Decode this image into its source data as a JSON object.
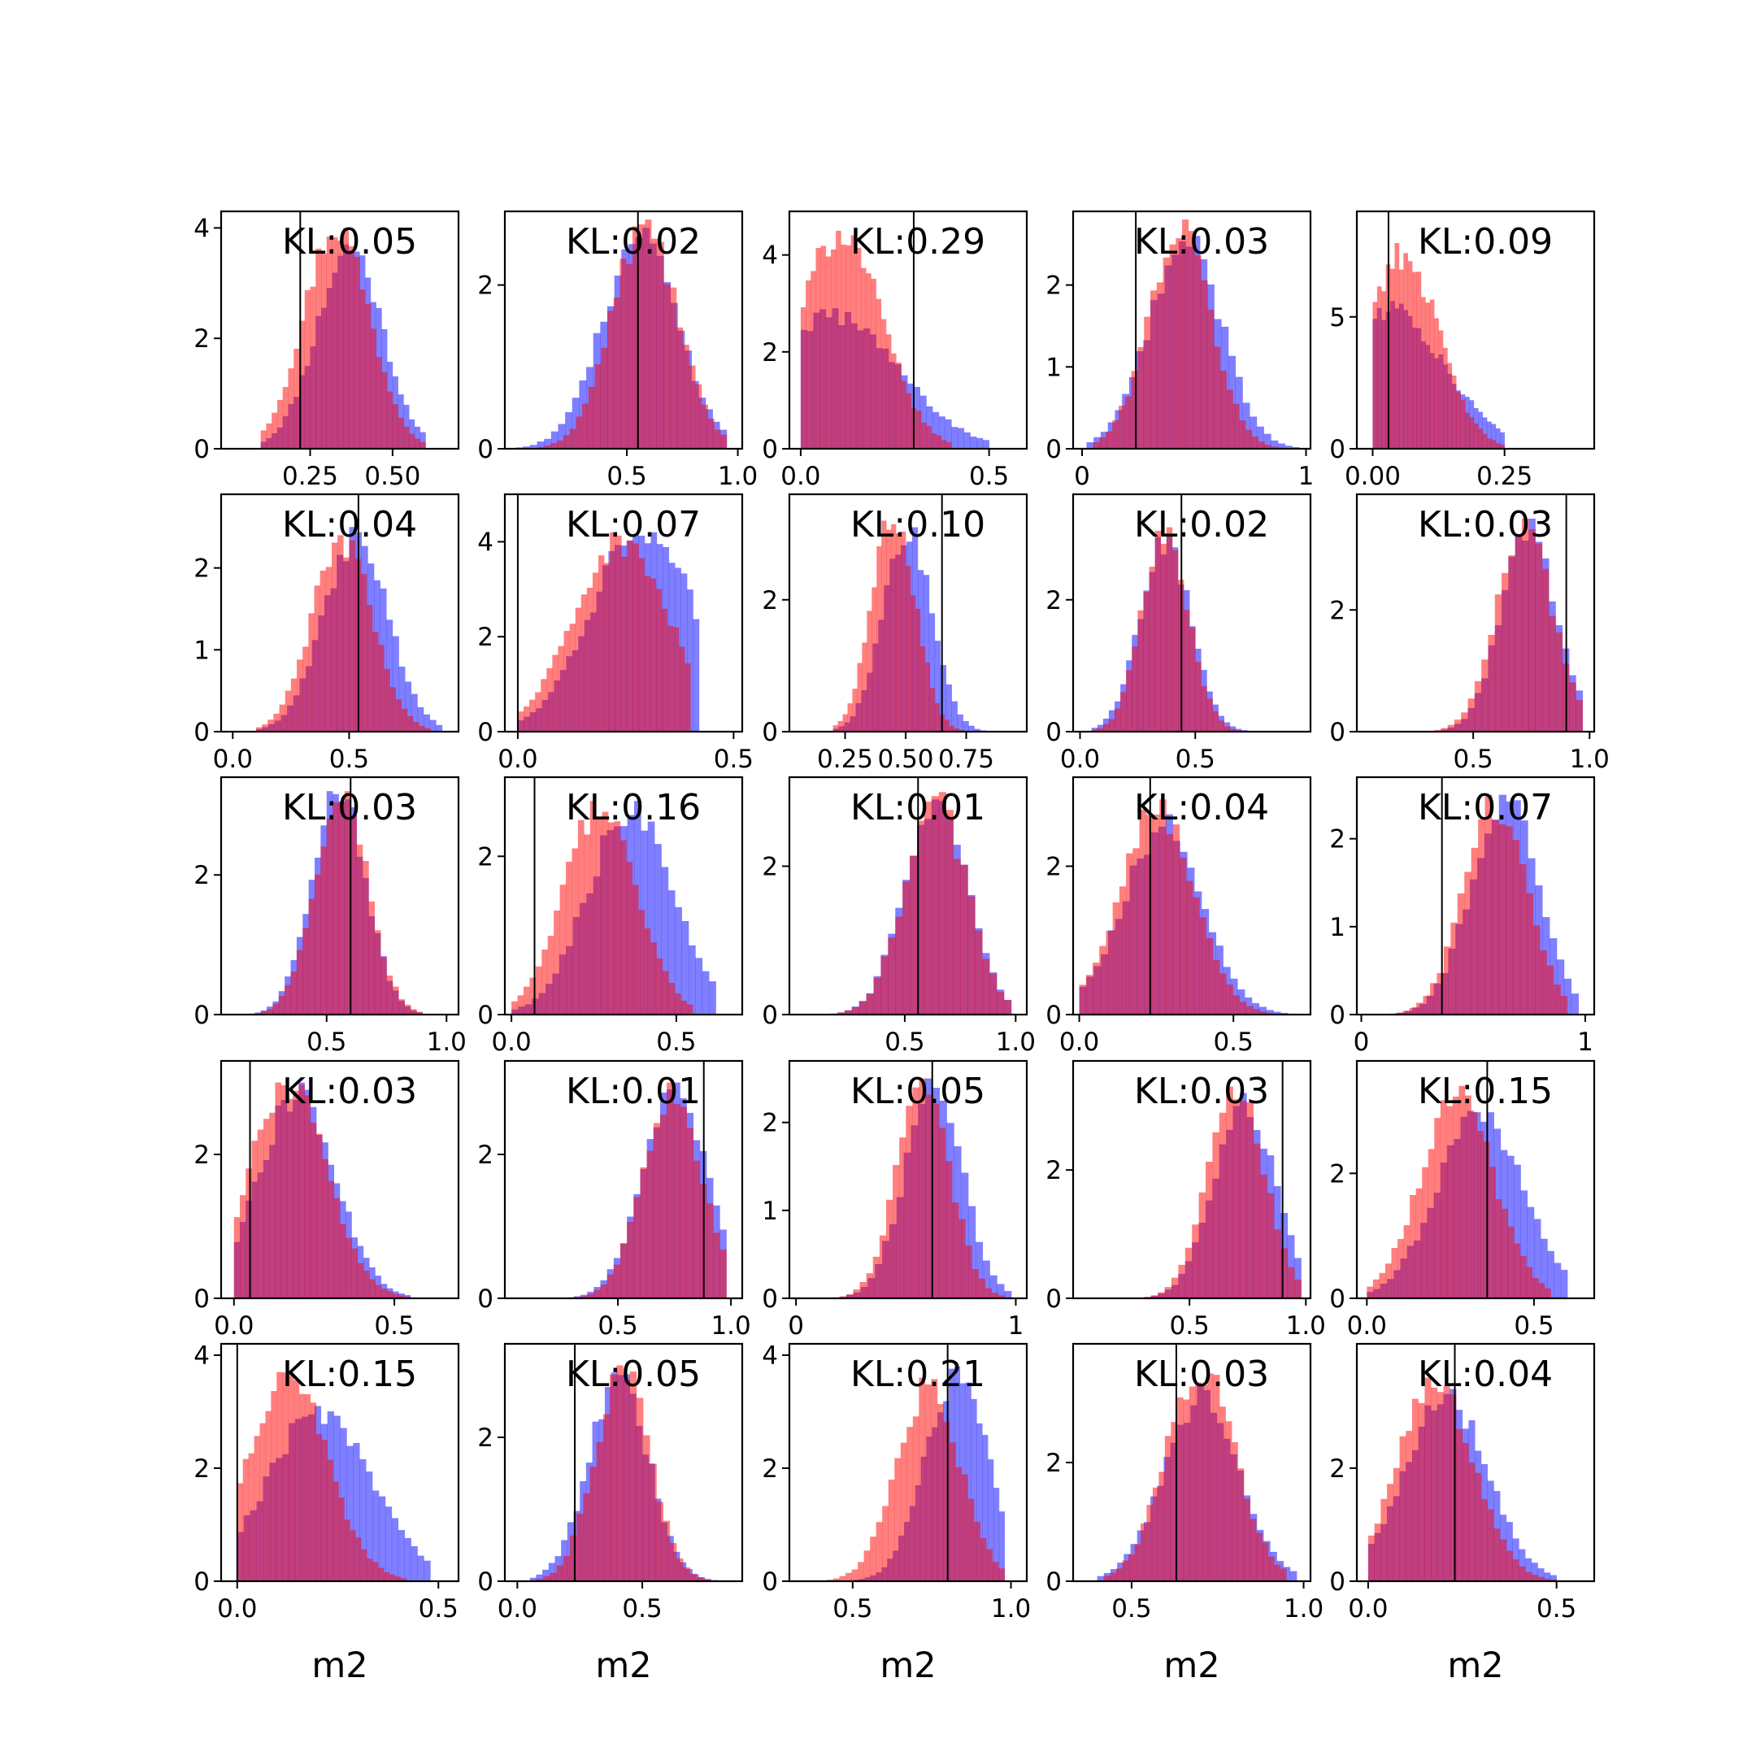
{
  "colors": {
    "blue": "#0000ff",
    "red": "#ff0000",
    "axes": "#000000",
    "background": "#ffffff"
  },
  "chart_data": [
    {
      "type": "bar",
      "kl": "KL:0.05",
      "xlim": [
        -0.02,
        0.7
      ],
      "ylim": [
        0,
        4.3
      ],
      "xticks": [
        0.25,
        0.5
      ],
      "xtick_labels": [
        "0.25",
        "0.50"
      ],
      "yticks": [
        0,
        2,
        4
      ],
      "ytick_labels": [
        "0",
        "2",
        "4"
      ],
      "vline": 0.22,
      "blue": {
        "lo": 0.1,
        "hi": 0.6,
        "mu": 0.36,
        "sd": 0.1,
        "skew": 0.4,
        "peak": 3.7
      },
      "red": {
        "lo": 0.1,
        "hi": 0.6,
        "mu": 0.33,
        "sd": 0.1,
        "skew": 0,
        "peak": 4.0
      },
      "xlabel": ""
    },
    {
      "type": "bar",
      "kl": "KL:0.02",
      "xlim": [
        -0.05,
        1.02
      ],
      "ylim": [
        0,
        2.9
      ],
      "xticks": [
        0.5,
        1.0
      ],
      "xtick_labels": [
        "0.5",
        "1.0"
      ],
      "yticks": [
        0,
        2
      ],
      "ytick_labels": [
        "0",
        "2"
      ],
      "vline": 0.55,
      "blue": {
        "lo": 0.0,
        "hi": 0.95,
        "mu": 0.55,
        "sd": 0.17,
        "skew": 0.3,
        "peak": 2.7
      },
      "red": {
        "lo": 0.1,
        "hi": 0.95,
        "mu": 0.58,
        "sd": 0.15,
        "skew": 0,
        "peak": 2.8
      },
      "xlabel": ""
    },
    {
      "type": "bar",
      "kl": "KL:0.29",
      "xlim": [
        -0.03,
        0.6
      ],
      "ylim": [
        0,
        4.9
      ],
      "xticks": [
        0.0,
        0.5
      ],
      "xtick_labels": [
        "0.0",
        "0.5"
      ],
      "yticks": [
        0,
        2,
        4
      ],
      "ytick_labels": [
        "0",
        "2",
        "4"
      ],
      "vline": 0.3,
      "blue": {
        "lo": 0.0,
        "hi": 0.5,
        "mu": 0.1,
        "sd": 0.17,
        "skew": -0.3,
        "peak": 2.9
      },
      "red": {
        "lo": 0.0,
        "hi": 0.4,
        "mu": 0.1,
        "sd": 0.11,
        "skew": 0.2,
        "peak": 4.5
      },
      "xlabel": ""
    },
    {
      "type": "bar",
      "kl": "KL:0.03",
      "xlim": [
        -0.04,
        1.02
      ],
      "ylim": [
        0,
        2.9
      ],
      "xticks": [
        0,
        1
      ],
      "xtick_labels": [
        "0",
        "1"
      ],
      "yticks": [
        0,
        1,
        2
      ],
      "ytick_labels": [
        "0",
        "1",
        "2"
      ],
      "vline": 0.24,
      "blue": {
        "lo": 0.02,
        "hi": 0.97,
        "mu": 0.45,
        "sd": 0.16,
        "skew": 0.3,
        "peak": 2.6
      },
      "red": {
        "lo": 0.05,
        "hi": 0.9,
        "mu": 0.43,
        "sd": 0.14,
        "skew": 0.2,
        "peak": 2.8
      },
      "xlabel": ""
    },
    {
      "type": "bar",
      "kl": "KL:0.09",
      "xlim": [
        -0.03,
        0.42
      ],
      "ylim": [
        0,
        9.0
      ],
      "xticks": [
        0.0,
        0.25
      ],
      "xtick_labels": [
        "0.00",
        "0.25"
      ],
      "yticks": [
        0,
        5
      ],
      "ytick_labels": [
        "0",
        "5"
      ],
      "vline": 0.03,
      "blue": {
        "lo": 0.0,
        "hi": 0.25,
        "mu": 0.05,
        "sd": 0.1,
        "skew": -0.5,
        "peak": 5.6
      },
      "red": {
        "lo": 0.0,
        "hi": 0.25,
        "mu": 0.05,
        "sd": 0.07,
        "skew": 0.3,
        "peak": 7.8
      },
      "xlabel": ""
    },
    {
      "type": "bar",
      "kl": "KL:0.04",
      "xlim": [
        -0.05,
        0.97
      ],
      "ylim": [
        0,
        2.9
      ],
      "xticks": [
        0.0,
        0.5
      ],
      "xtick_labels": [
        "0.0",
        "0.5"
      ],
      "yticks": [
        0,
        1,
        2
      ],
      "ytick_labels": [
        "0",
        "1",
        "2"
      ],
      "vline": 0.54,
      "blue": {
        "lo": 0.1,
        "hi": 0.9,
        "mu": 0.52,
        "sd": 0.14,
        "skew": 0.3,
        "peak": 2.5
      },
      "red": {
        "lo": 0.1,
        "hi": 0.85,
        "mu": 0.47,
        "sd": 0.13,
        "skew": 0,
        "peak": 2.4
      },
      "xlabel": ""
    },
    {
      "type": "bar",
      "kl": "KL:0.07",
      "xlim": [
        -0.03,
        0.52
      ],
      "ylim": [
        0,
        5.0
      ],
      "xticks": [
        0.0,
        0.5
      ],
      "xtick_labels": [
        "0.0",
        "0.5"
      ],
      "yticks": [
        0,
        2,
        4
      ],
      "ytick_labels": [
        "0",
        "2",
        "4"
      ],
      "vline": 0.0,
      "blue": {
        "lo": 0.0,
        "hi": 0.42,
        "mu": 0.3,
        "sd": 0.12,
        "skew": -0.3,
        "peak": 4.2
      },
      "red": {
        "lo": 0.0,
        "hi": 0.4,
        "mu": 0.24,
        "sd": 0.11,
        "skew": 0,
        "peak": 4.2
      },
      "xlabel": ""
    },
    {
      "type": "bar",
      "kl": "KL:0.10",
      "xlim": [
        0.02,
        1.0
      ],
      "ylim": [
        0,
        3.6
      ],
      "xticks": [
        0.25,
        0.5,
        0.75
      ],
      "xtick_labels": [
        "0.25",
        "0.50",
        "0.75"
      ],
      "yticks": [
        0,
        2
      ],
      "ytick_labels": [
        "0",
        "2"
      ],
      "vline": 0.65,
      "blue": {
        "lo": 0.2,
        "hi": 0.9,
        "mu": 0.5,
        "sd": 0.1,
        "skew": 0.3,
        "peak": 3.1
      },
      "red": {
        "lo": 0.2,
        "hi": 0.8,
        "mu": 0.45,
        "sd": 0.09,
        "skew": 0,
        "peak": 3.2
      },
      "xlabel": ""
    },
    {
      "type": "bar",
      "kl": "KL:0.02",
      "xlim": [
        -0.03,
        1.0
      ],
      "ylim": [
        0,
        3.6
      ],
      "xticks": [
        0.0,
        0.5
      ],
      "xtick_labels": [
        "0.0",
        "0.5"
      ],
      "yticks": [
        0,
        2
      ],
      "ytick_labels": [
        "0",
        "2"
      ],
      "vline": 0.44,
      "blue": {
        "lo": 0.05,
        "hi": 0.8,
        "mu": 0.37,
        "sd": 0.11,
        "skew": 0,
        "peak": 3.0
      },
      "red": {
        "lo": 0.05,
        "hi": 0.8,
        "mu": 0.37,
        "sd": 0.1,
        "skew": 0,
        "peak": 3.1
      },
      "xlabel": ""
    },
    {
      "type": "bar",
      "kl": "KL:0.03",
      "xlim": [
        0.0,
        1.02
      ],
      "ylim": [
        0,
        3.9
      ],
      "xticks": [
        0.5,
        1.0
      ],
      "xtick_labels": [
        "0.5",
        "1.0"
      ],
      "yticks": [
        0,
        2
      ],
      "ytick_labels": [
        "0",
        "2"
      ],
      "vline": 0.9,
      "blue": {
        "lo": 0.1,
        "hi": 0.97,
        "mu": 0.74,
        "sd": 0.12,
        "skew": 0,
        "peak": 3.5
      },
      "red": {
        "lo": 0.1,
        "hi": 0.97,
        "mu": 0.72,
        "sd": 0.12,
        "skew": 0,
        "peak": 3.5
      },
      "xlabel": ""
    },
    {
      "type": "bar",
      "kl": "KL:0.03",
      "xlim": [
        0.06,
        1.05
      ],
      "ylim": [
        0,
        3.4
      ],
      "xticks": [
        0.5,
        1.0
      ],
      "xtick_labels": [
        "0.5",
        "1.0"
      ],
      "yticks": [
        0,
        2
      ],
      "ytick_labels": [
        "0",
        "2"
      ],
      "vline": 0.6,
      "blue": {
        "lo": 0.15,
        "hi": 0.9,
        "mu": 0.55,
        "sd": 0.11,
        "skew": 0,
        "peak": 3.2
      },
      "red": {
        "lo": 0.15,
        "hi": 0.9,
        "mu": 0.56,
        "sd": 0.11,
        "skew": 0,
        "peak": 3.2
      },
      "xlabel": ""
    },
    {
      "type": "bar",
      "kl": "KL:0.16",
      "xlim": [
        -0.02,
        0.7
      ],
      "ylim": [
        0,
        3.0
      ],
      "xticks": [
        0.0,
        0.5
      ],
      "xtick_labels": [
        "0.0",
        "0.5"
      ],
      "yticks": [
        0,
        2
      ],
      "ytick_labels": [
        "0",
        "2"
      ],
      "vline": 0.07,
      "blue": {
        "lo": 0.0,
        "hi": 0.62,
        "mu": 0.37,
        "sd": 0.13,
        "skew": -0.3,
        "peak": 2.7
      },
      "red": {
        "lo": 0.0,
        "hi": 0.55,
        "mu": 0.27,
        "sd": 0.11,
        "skew": 0,
        "peak": 2.7
      },
      "xlabel": ""
    },
    {
      "type": "bar",
      "kl": "KL:0.01",
      "xlim": [
        -0.02,
        1.05
      ],
      "ylim": [
        0,
        3.2
      ],
      "xticks": [
        0.5,
        1.0
      ],
      "xtick_labels": [
        "0.5",
        "1.0"
      ],
      "yticks": [
        0,
        2
      ],
      "ytick_labels": [
        "0",
        "2"
      ],
      "vline": 0.56,
      "blue": {
        "lo": 0.0,
        "hi": 0.98,
        "mu": 0.64,
        "sd": 0.14,
        "skew": 0,
        "peak": 2.9
      },
      "red": {
        "lo": 0.0,
        "hi": 0.98,
        "mu": 0.64,
        "sd": 0.14,
        "skew": 0,
        "peak": 3.0
      },
      "xlabel": ""
    },
    {
      "type": "bar",
      "kl": "KL:0.04",
      "xlim": [
        -0.02,
        0.75
      ],
      "ylim": [
        0,
        3.2
      ],
      "xticks": [
        0.0,
        0.5
      ],
      "xtick_labels": [
        "0.0",
        "0.5"
      ],
      "yticks": [
        0,
        2
      ],
      "ytick_labels": [
        "0",
        "2"
      ],
      "vline": 0.23,
      "blue": {
        "lo": 0.0,
        "hi": 0.7,
        "mu": 0.26,
        "sd": 0.13,
        "skew": 0.4,
        "peak": 2.7
      },
      "red": {
        "lo": 0.0,
        "hi": 0.65,
        "mu": 0.25,
        "sd": 0.12,
        "skew": 0,
        "peak": 2.9
      },
      "xlabel": ""
    },
    {
      "type": "bar",
      "kl": "KL:0.07",
      "xlim": [
        -0.02,
        1.04
      ],
      "ylim": [
        0,
        2.7
      ],
      "xticks": [
        0,
        1
      ],
      "xtick_labels": [
        "0",
        "1"
      ],
      "yticks": [
        0,
        1,
        2
      ],
      "ytick_labels": [
        "0",
        "1",
        "2"
      ],
      "vline": 0.36,
      "blue": {
        "lo": 0.0,
        "hi": 0.97,
        "mu": 0.63,
        "sd": 0.15,
        "skew": 0.3,
        "peak": 2.5
      },
      "red": {
        "lo": 0.0,
        "hi": 0.92,
        "mu": 0.6,
        "sd": 0.14,
        "skew": 0,
        "peak": 2.5
      },
      "xlabel": ""
    },
    {
      "type": "bar",
      "kl": "KL:0.03",
      "xlim": [
        -0.04,
        0.7
      ],
      "ylim": [
        0,
        3.3
      ],
      "xticks": [
        0.0,
        0.5
      ],
      "xtick_labels": [
        "0.0",
        "0.5"
      ],
      "yticks": [
        0,
        2
      ],
      "ytick_labels": [
        "0",
        "2"
      ],
      "vline": 0.05,
      "blue": {
        "lo": 0.0,
        "hi": 0.55,
        "mu": 0.19,
        "sd": 0.12,
        "skew": 0.2,
        "peak": 3.0
      },
      "red": {
        "lo": 0.0,
        "hi": 0.55,
        "mu": 0.17,
        "sd": 0.12,
        "skew": 0,
        "peak": 3.0
      },
      "xlabel": ""
    },
    {
      "type": "bar",
      "kl": "KL:0.01",
      "xlim": [
        0.0,
        1.05
      ],
      "ylim": [
        0,
        3.3
      ],
      "xticks": [
        0.5,
        1.0
      ],
      "xtick_labels": [
        "0.5",
        "1.0"
      ],
      "yticks": [
        0,
        2
      ],
      "ytick_labels": [
        "0",
        "2"
      ],
      "vline": 0.88,
      "blue": {
        "lo": 0.1,
        "hi": 0.98,
        "mu": 0.75,
        "sd": 0.14,
        "skew": 0,
        "peak": 3.0
      },
      "red": {
        "lo": 0.1,
        "hi": 0.98,
        "mu": 0.74,
        "sd": 0.13,
        "skew": 0,
        "peak": 3.0
      },
      "xlabel": ""
    },
    {
      "type": "bar",
      "kl": "KL:0.05",
      "xlim": [
        -0.03,
        1.05
      ],
      "ylim": [
        0,
        2.7
      ],
      "xticks": [
        0,
        1
      ],
      "xtick_labels": [
        "0",
        "1"
      ],
      "yticks": [
        0,
        1,
        2
      ],
      "ytick_labels": [
        "0",
        "1",
        "2"
      ],
      "vline": 0.62,
      "blue": {
        "lo": 0.0,
        "hi": 0.98,
        "mu": 0.62,
        "sd": 0.13,
        "skew": 0.2,
        "peak": 2.5
      },
      "red": {
        "lo": 0.05,
        "hi": 0.95,
        "mu": 0.58,
        "sd": 0.12,
        "skew": 0,
        "peak": 2.5
      },
      "xlabel": ""
    },
    {
      "type": "bar",
      "kl": "KL:0.03",
      "xlim": [
        0.0,
        1.02
      ],
      "ylim": [
        0,
        3.7
      ],
      "xticks": [
        0.5,
        1.0
      ],
      "xtick_labels": [
        "0.5",
        "1.0"
      ],
      "yticks": [
        0,
        2
      ],
      "ytick_labels": [
        "0",
        "2"
      ],
      "vline": 0.9,
      "blue": {
        "lo": 0.1,
        "hi": 0.98,
        "mu": 0.73,
        "sd": 0.13,
        "skew": 0.2,
        "peak": 3.2
      },
      "red": {
        "lo": 0.1,
        "hi": 0.98,
        "mu": 0.7,
        "sd": 0.12,
        "skew": 0,
        "peak": 3.3
      },
      "xlabel": ""
    },
    {
      "type": "bar",
      "kl": "KL:0.15",
      "xlim": [
        -0.03,
        0.68
      ],
      "ylim": [
        0,
        3.8
      ],
      "xticks": [
        0.0,
        0.5
      ],
      "xtick_labels": [
        "0.0",
        "0.5"
      ],
      "yticks": [
        0,
        2
      ],
      "ytick_labels": [
        "0",
        "2"
      ],
      "vline": 0.36,
      "blue": {
        "lo": 0.0,
        "hi": 0.6,
        "mu": 0.35,
        "sd": 0.13,
        "skew": -0.4,
        "peak": 3.0
      },
      "red": {
        "lo": 0.0,
        "hi": 0.55,
        "mu": 0.27,
        "sd": 0.11,
        "skew": 0,
        "peak": 3.4
      },
      "xlabel": ""
    },
    {
      "type": "bar",
      "kl": "KL:0.15",
      "xlim": [
        -0.04,
        0.55
      ],
      "ylim": [
        0,
        4.2
      ],
      "xticks": [
        0.0,
        0.5
      ],
      "xtick_labels": [
        "0.0",
        "0.5"
      ],
      "yticks": [
        0,
        2,
        4
      ],
      "ytick_labels": [
        "0",
        "2",
        "4"
      ],
      "vline": 0.0,
      "blue": {
        "lo": 0.0,
        "hi": 0.48,
        "mu": 0.22,
        "sd": 0.13,
        "skew": -0.5,
        "peak": 3.1
      },
      "red": {
        "lo": 0.0,
        "hi": 0.42,
        "mu": 0.12,
        "sd": 0.1,
        "skew": 0.2,
        "peak": 3.7
      },
      "xlabel": "m2"
    },
    {
      "type": "bar",
      "kl": "KL:0.05",
      "xlim": [
        -0.05,
        0.9
      ],
      "ylim": [
        0,
        3.3
      ],
      "xticks": [
        0.0,
        0.5
      ],
      "xtick_labels": [
        "0.0",
        "0.5"
      ],
      "yticks": [
        0,
        2
      ],
      "ytick_labels": [
        "0",
        "2"
      ],
      "vline": 0.23,
      "blue": {
        "lo": 0.05,
        "hi": 0.8,
        "mu": 0.4,
        "sd": 0.12,
        "skew": 0.2,
        "peak": 2.9
      },
      "red": {
        "lo": 0.05,
        "hi": 0.85,
        "mu": 0.42,
        "sd": 0.11,
        "skew": 0,
        "peak": 3.0
      },
      "xlabel": "m2"
    },
    {
      "type": "bar",
      "kl": "KL:0.21",
      "xlim": [
        0.3,
        1.05
      ],
      "ylim": [
        0,
        4.2
      ],
      "xticks": [
        0.5,
        1.0
      ],
      "xtick_labels": [
        "0.5",
        "1.0"
      ],
      "yticks": [
        0,
        2,
        4
      ],
      "ytick_labels": [
        "0",
        "2",
        "4"
      ],
      "vline": 0.8,
      "blue": {
        "lo": 0.45,
        "hi": 0.98,
        "mu": 0.83,
        "sd": 0.1,
        "skew": 0,
        "peak": 3.8
      },
      "red": {
        "lo": 0.4,
        "hi": 0.98,
        "mu": 0.74,
        "sd": 0.1,
        "skew": 0,
        "peak": 3.6
      },
      "xlabel": "m2"
    },
    {
      "type": "bar",
      "kl": "KL:0.03",
      "xlim": [
        0.33,
        1.02
      ],
      "ylim": [
        0,
        4.0
      ],
      "xticks": [
        0.5,
        1.0
      ],
      "xtick_labels": [
        "0.5",
        "1.0"
      ],
      "yticks": [
        0,
        2
      ],
      "ytick_labels": [
        "0",
        "2"
      ],
      "vline": 0.63,
      "blue": {
        "lo": 0.4,
        "hi": 0.98,
        "mu": 0.7,
        "sd": 0.11,
        "skew": 0.2,
        "peak": 3.3
      },
      "red": {
        "lo": 0.42,
        "hi": 0.95,
        "mu": 0.7,
        "sd": 0.1,
        "skew": 0,
        "peak": 3.5
      },
      "xlabel": "m2"
    },
    {
      "type": "bar",
      "kl": "KL:0.04",
      "xlim": [
        -0.03,
        0.6
      ],
      "ylim": [
        0,
        4.2
      ],
      "xticks": [
        0.0,
        0.5
      ],
      "xtick_labels": [
        "0.0",
        "0.5"
      ],
      "yticks": [
        0,
        2
      ],
      "ytick_labels": [
        "0",
        "2"
      ],
      "vline": 0.23,
      "blue": {
        "lo": 0.0,
        "hi": 0.5,
        "mu": 0.2,
        "sd": 0.11,
        "skew": 0.2,
        "peak": 3.4
      },
      "red": {
        "lo": 0.0,
        "hi": 0.5,
        "mu": 0.18,
        "sd": 0.1,
        "skew": 0,
        "peak": 3.6
      },
      "xlabel": "m2"
    }
  ]
}
